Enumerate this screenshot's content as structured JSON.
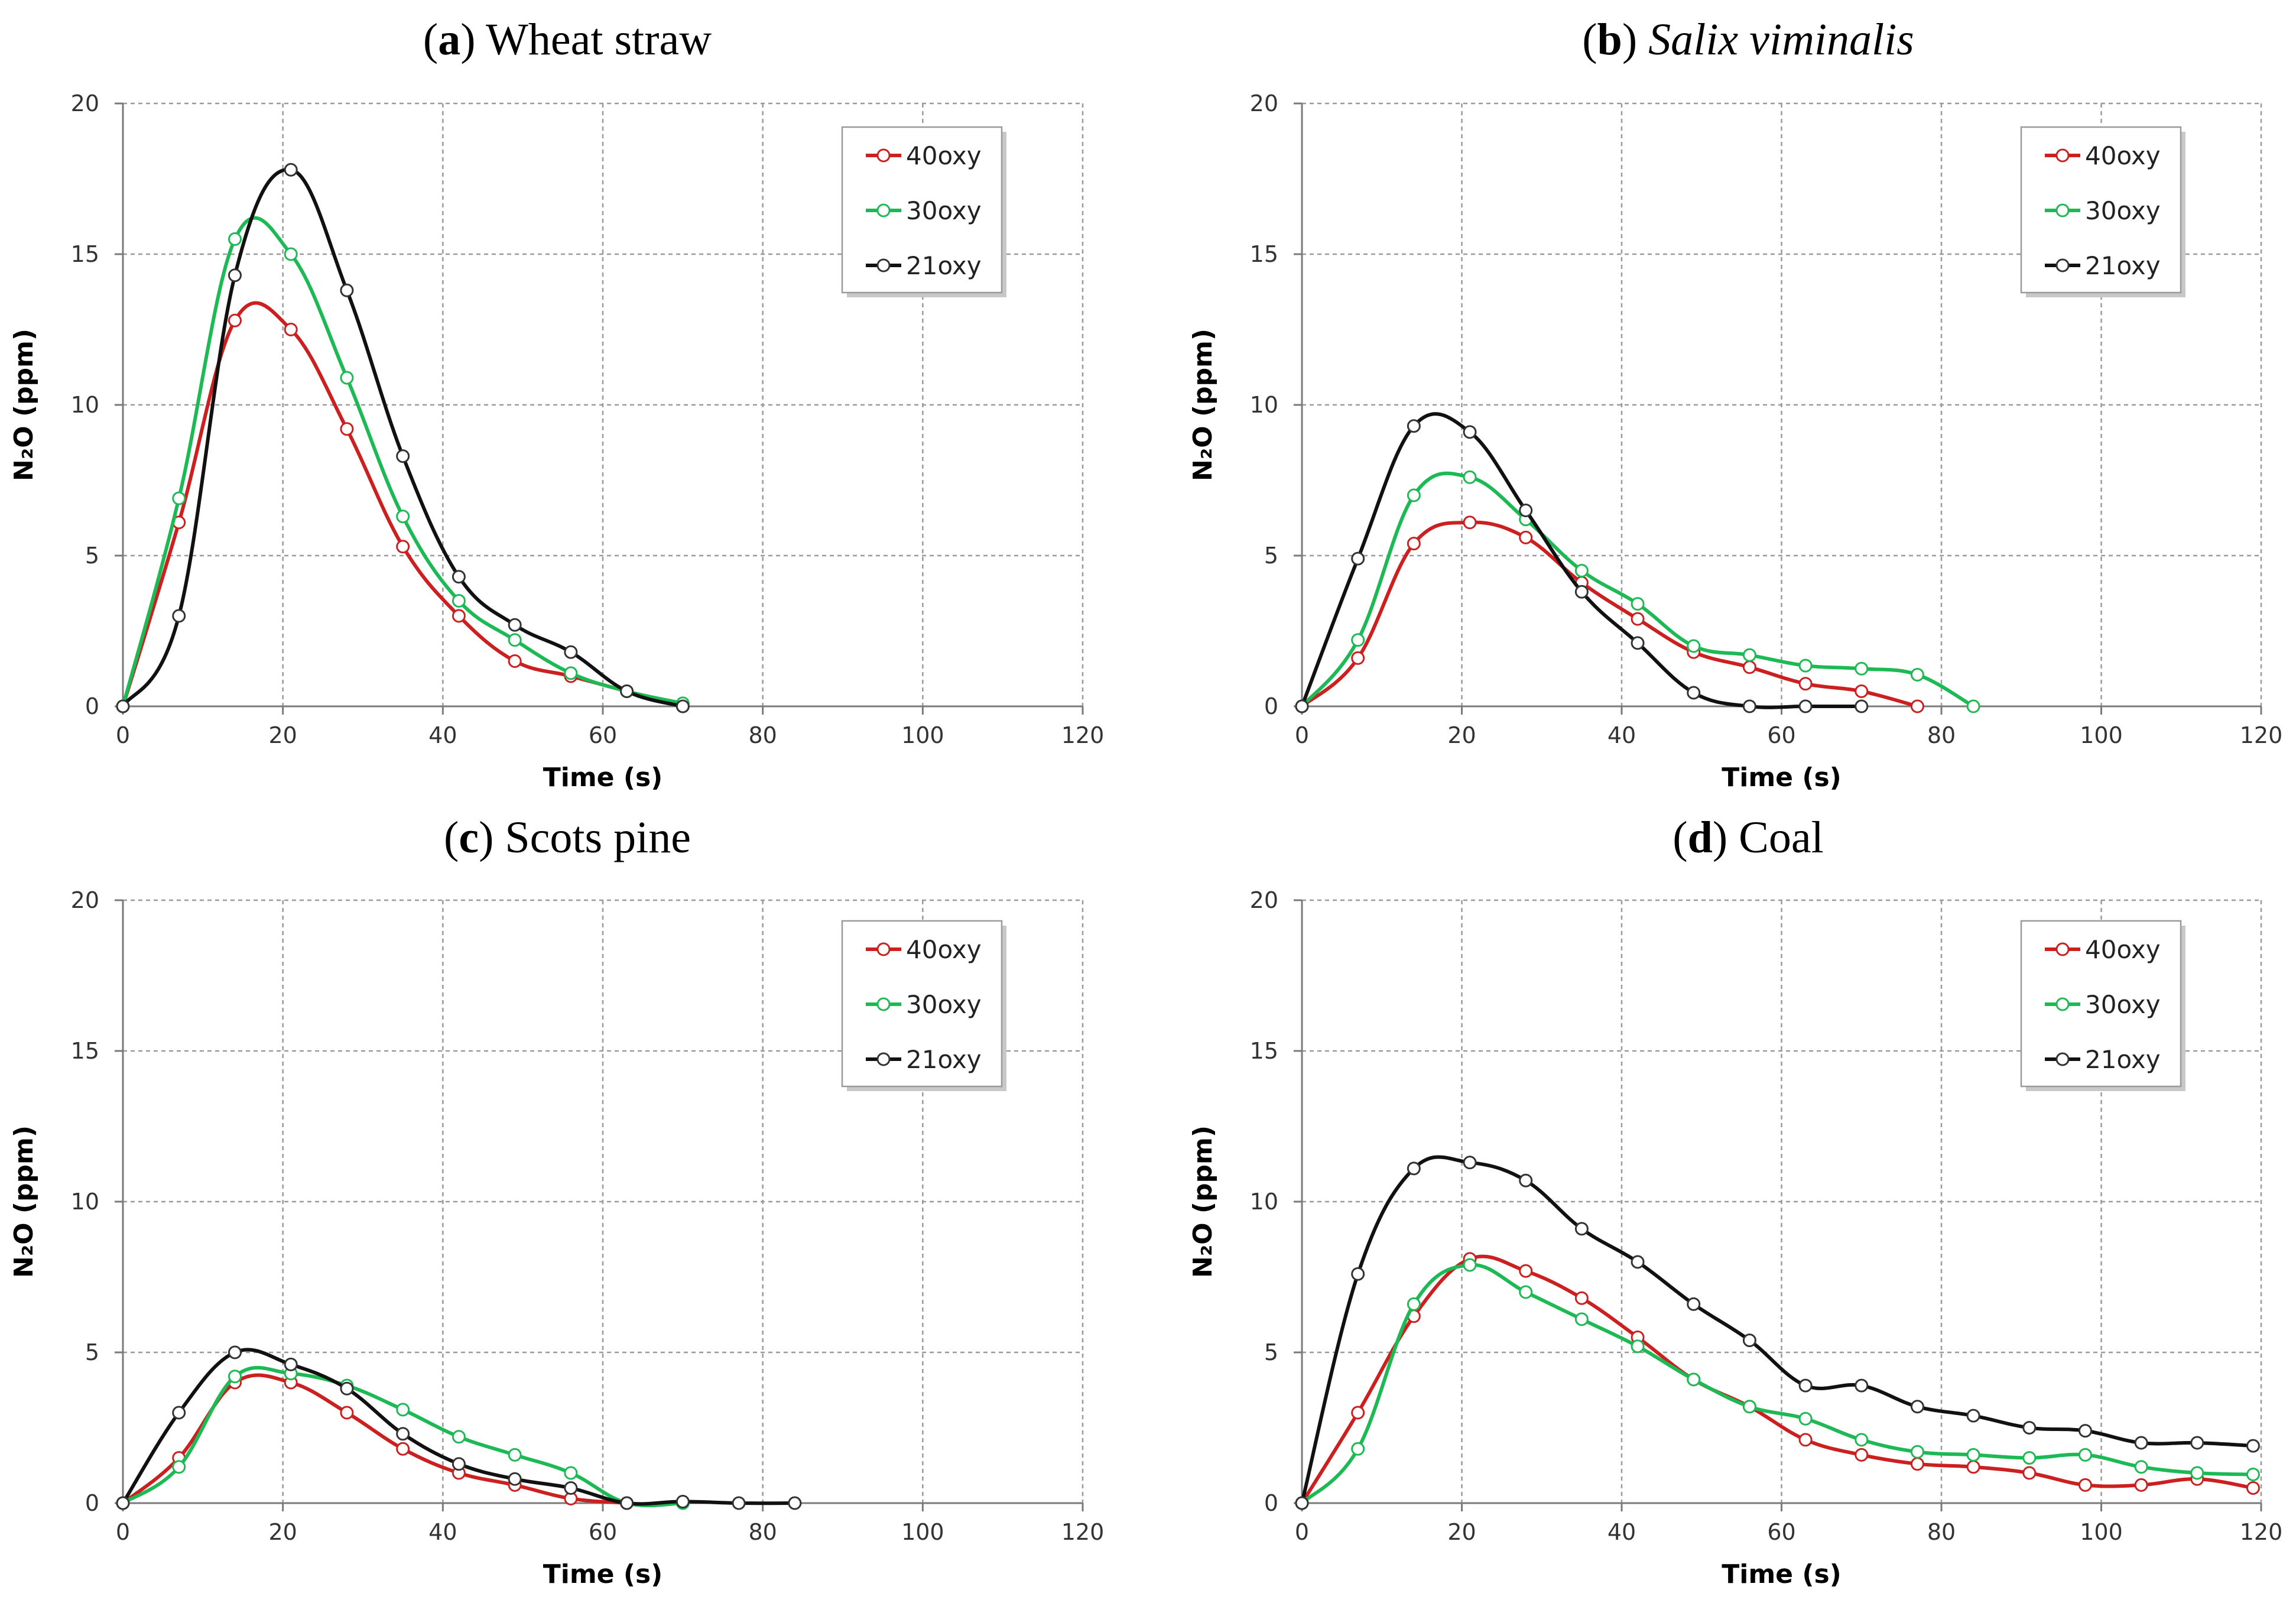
{
  "chart_data": [
    {
      "type": "line",
      "panel_letter": "a",
      "title": "Wheat straw",
      "title_italic": false,
      "xlabel": "Time (s)",
      "ylabel": "N₂O (ppm)",
      "xlim": [
        0,
        120
      ],
      "ylim": [
        0,
        20
      ],
      "xticks": [
        0,
        20,
        40,
        60,
        80,
        100,
        120
      ],
      "yticks": [
        0,
        5,
        10,
        15,
        20
      ],
      "grid": true,
      "legend_position": "top-right",
      "series": [
        {
          "name": "40oxy",
          "color": "#cc1f1f",
          "x": [
            0,
            7,
            14,
            21,
            28,
            35,
            42,
            49,
            56,
            63,
            70
          ],
          "y": [
            0,
            6.1,
            12.8,
            12.5,
            9.2,
            5.3,
            3.0,
            1.5,
            1.0,
            0.5,
            0
          ]
        },
        {
          "name": "30oxy",
          "color": "#1db954",
          "x": [
            0,
            7,
            14,
            21,
            28,
            35,
            42,
            49,
            56,
            63,
            70
          ],
          "y": [
            0,
            6.9,
            15.5,
            15.0,
            10.9,
            6.3,
            3.5,
            2.2,
            1.1,
            0.5,
            0.1
          ]
        },
        {
          "name": "21oxy",
          "color": "#111111",
          "x": [
            0,
            7,
            14,
            21,
            28,
            35,
            42,
            49,
            56,
            63,
            70
          ],
          "y": [
            0,
            3.0,
            14.3,
            17.8,
            13.8,
            8.3,
            4.3,
            2.7,
            1.8,
            0.5,
            0
          ]
        }
      ]
    },
    {
      "type": "line",
      "panel_letter": "b",
      "title": "Salix viminalis",
      "title_italic": true,
      "xlabel": "Time (s)",
      "ylabel": "N₂O (ppm)",
      "xlim": [
        0,
        120
      ],
      "ylim": [
        0,
        20
      ],
      "xticks": [
        0,
        20,
        40,
        60,
        80,
        100,
        120
      ],
      "yticks": [
        0,
        5,
        10,
        15,
        20
      ],
      "grid": true,
      "legend_position": "top-right",
      "series": [
        {
          "name": "40oxy",
          "color": "#cc1f1f",
          "x": [
            0,
            7,
            14,
            21,
            28,
            35,
            42,
            49,
            56,
            63,
            70,
            77
          ],
          "y": [
            0,
            1.6,
            5.4,
            6.1,
            5.6,
            4.1,
            2.9,
            1.8,
            1.3,
            0.75,
            0.5,
            0
          ]
        },
        {
          "name": "30oxy",
          "color": "#1db954",
          "x": [
            0,
            7,
            14,
            21,
            28,
            35,
            42,
            49,
            56,
            63,
            70,
            77,
            84
          ],
          "y": [
            0,
            2.2,
            7.0,
            7.6,
            6.2,
            4.5,
            3.4,
            2.0,
            1.7,
            1.35,
            1.25,
            1.05,
            0
          ]
        },
        {
          "name": "21oxy",
          "color": "#111111",
          "x": [
            0,
            7,
            14,
            21,
            28,
            35,
            42,
            49,
            56,
            63,
            70
          ],
          "y": [
            0,
            4.9,
            9.3,
            9.1,
            6.5,
            3.8,
            2.1,
            0.45,
            0,
            0,
            0
          ]
        }
      ]
    },
    {
      "type": "line",
      "panel_letter": "c",
      "title": "Scots pine",
      "title_italic": false,
      "xlabel": "Time (s)",
      "ylabel": "N₂O (ppm)",
      "xlim": [
        0,
        120
      ],
      "ylim": [
        0,
        20
      ],
      "xticks": [
        0,
        20,
        40,
        60,
        80,
        100,
        120
      ],
      "yticks": [
        0,
        5,
        10,
        15,
        20
      ],
      "grid": true,
      "legend_position": "top-right",
      "series": [
        {
          "name": "40oxy",
          "color": "#cc1f1f",
          "x": [
            0,
            7,
            14,
            21,
            28,
            35,
            42,
            49,
            56,
            63
          ],
          "y": [
            0,
            1.5,
            4.0,
            4.0,
            3.0,
            1.8,
            1.0,
            0.6,
            0.15,
            0
          ]
        },
        {
          "name": "30oxy",
          "color": "#1db954",
          "x": [
            0,
            7,
            14,
            21,
            28,
            35,
            42,
            49,
            56,
            63,
            70
          ],
          "y": [
            0,
            1.2,
            4.2,
            4.3,
            3.9,
            3.1,
            2.2,
            1.6,
            1.0,
            0,
            0
          ]
        },
        {
          "name": "21oxy",
          "color": "#111111",
          "x": [
            0,
            7,
            14,
            21,
            28,
            35,
            42,
            49,
            56,
            63,
            70,
            77,
            84
          ],
          "y": [
            0,
            3.0,
            5.0,
            4.6,
            3.8,
            2.3,
            1.3,
            0.8,
            0.5,
            0,
            0.05,
            0,
            0
          ]
        }
      ]
    },
    {
      "type": "line",
      "panel_letter": "d",
      "title": "Coal",
      "title_italic": false,
      "xlabel": "Time (s)",
      "ylabel": "N₂O (ppm)",
      "xlim": [
        0,
        120
      ],
      "ylim": [
        0,
        20
      ],
      "xticks": [
        0,
        20,
        40,
        60,
        80,
        100,
        120
      ],
      "yticks": [
        0,
        5,
        10,
        15,
        20
      ],
      "grid": true,
      "legend_position": "top-right",
      "series": [
        {
          "name": "40oxy",
          "color": "#cc1f1f",
          "x": [
            0,
            7,
            14,
            21,
            28,
            35,
            42,
            49,
            56,
            63,
            70,
            77,
            84,
            91,
            98,
            105,
            112,
            119
          ],
          "y": [
            0,
            3.0,
            6.2,
            8.1,
            7.7,
            6.8,
            5.5,
            4.1,
            3.2,
            2.1,
            1.6,
            1.3,
            1.2,
            1.0,
            0.6,
            0.6,
            0.8,
            0.5
          ]
        },
        {
          "name": "30oxy",
          "color": "#1db954",
          "x": [
            0,
            7,
            14,
            21,
            28,
            35,
            42,
            49,
            56,
            63,
            70,
            77,
            84,
            91,
            98,
            105,
            112,
            119
          ],
          "y": [
            0,
            1.8,
            6.6,
            7.9,
            7.0,
            6.1,
            5.2,
            4.1,
            3.2,
            2.8,
            2.1,
            1.7,
            1.6,
            1.5,
            1.6,
            1.2,
            1.0,
            0.95
          ]
        },
        {
          "name": "21oxy",
          "color": "#111111",
          "x": [
            0,
            7,
            14,
            21,
            28,
            35,
            42,
            49,
            56,
            63,
            70,
            77,
            84,
            91,
            98,
            105,
            112,
            119
          ],
          "y": [
            0,
            7.6,
            11.1,
            11.3,
            10.7,
            9.1,
            8.0,
            6.6,
            5.4,
            3.9,
            3.9,
            3.2,
            2.9,
            2.5,
            2.4,
            2.0,
            2.0,
            1.9
          ]
        }
      ]
    }
  ]
}
